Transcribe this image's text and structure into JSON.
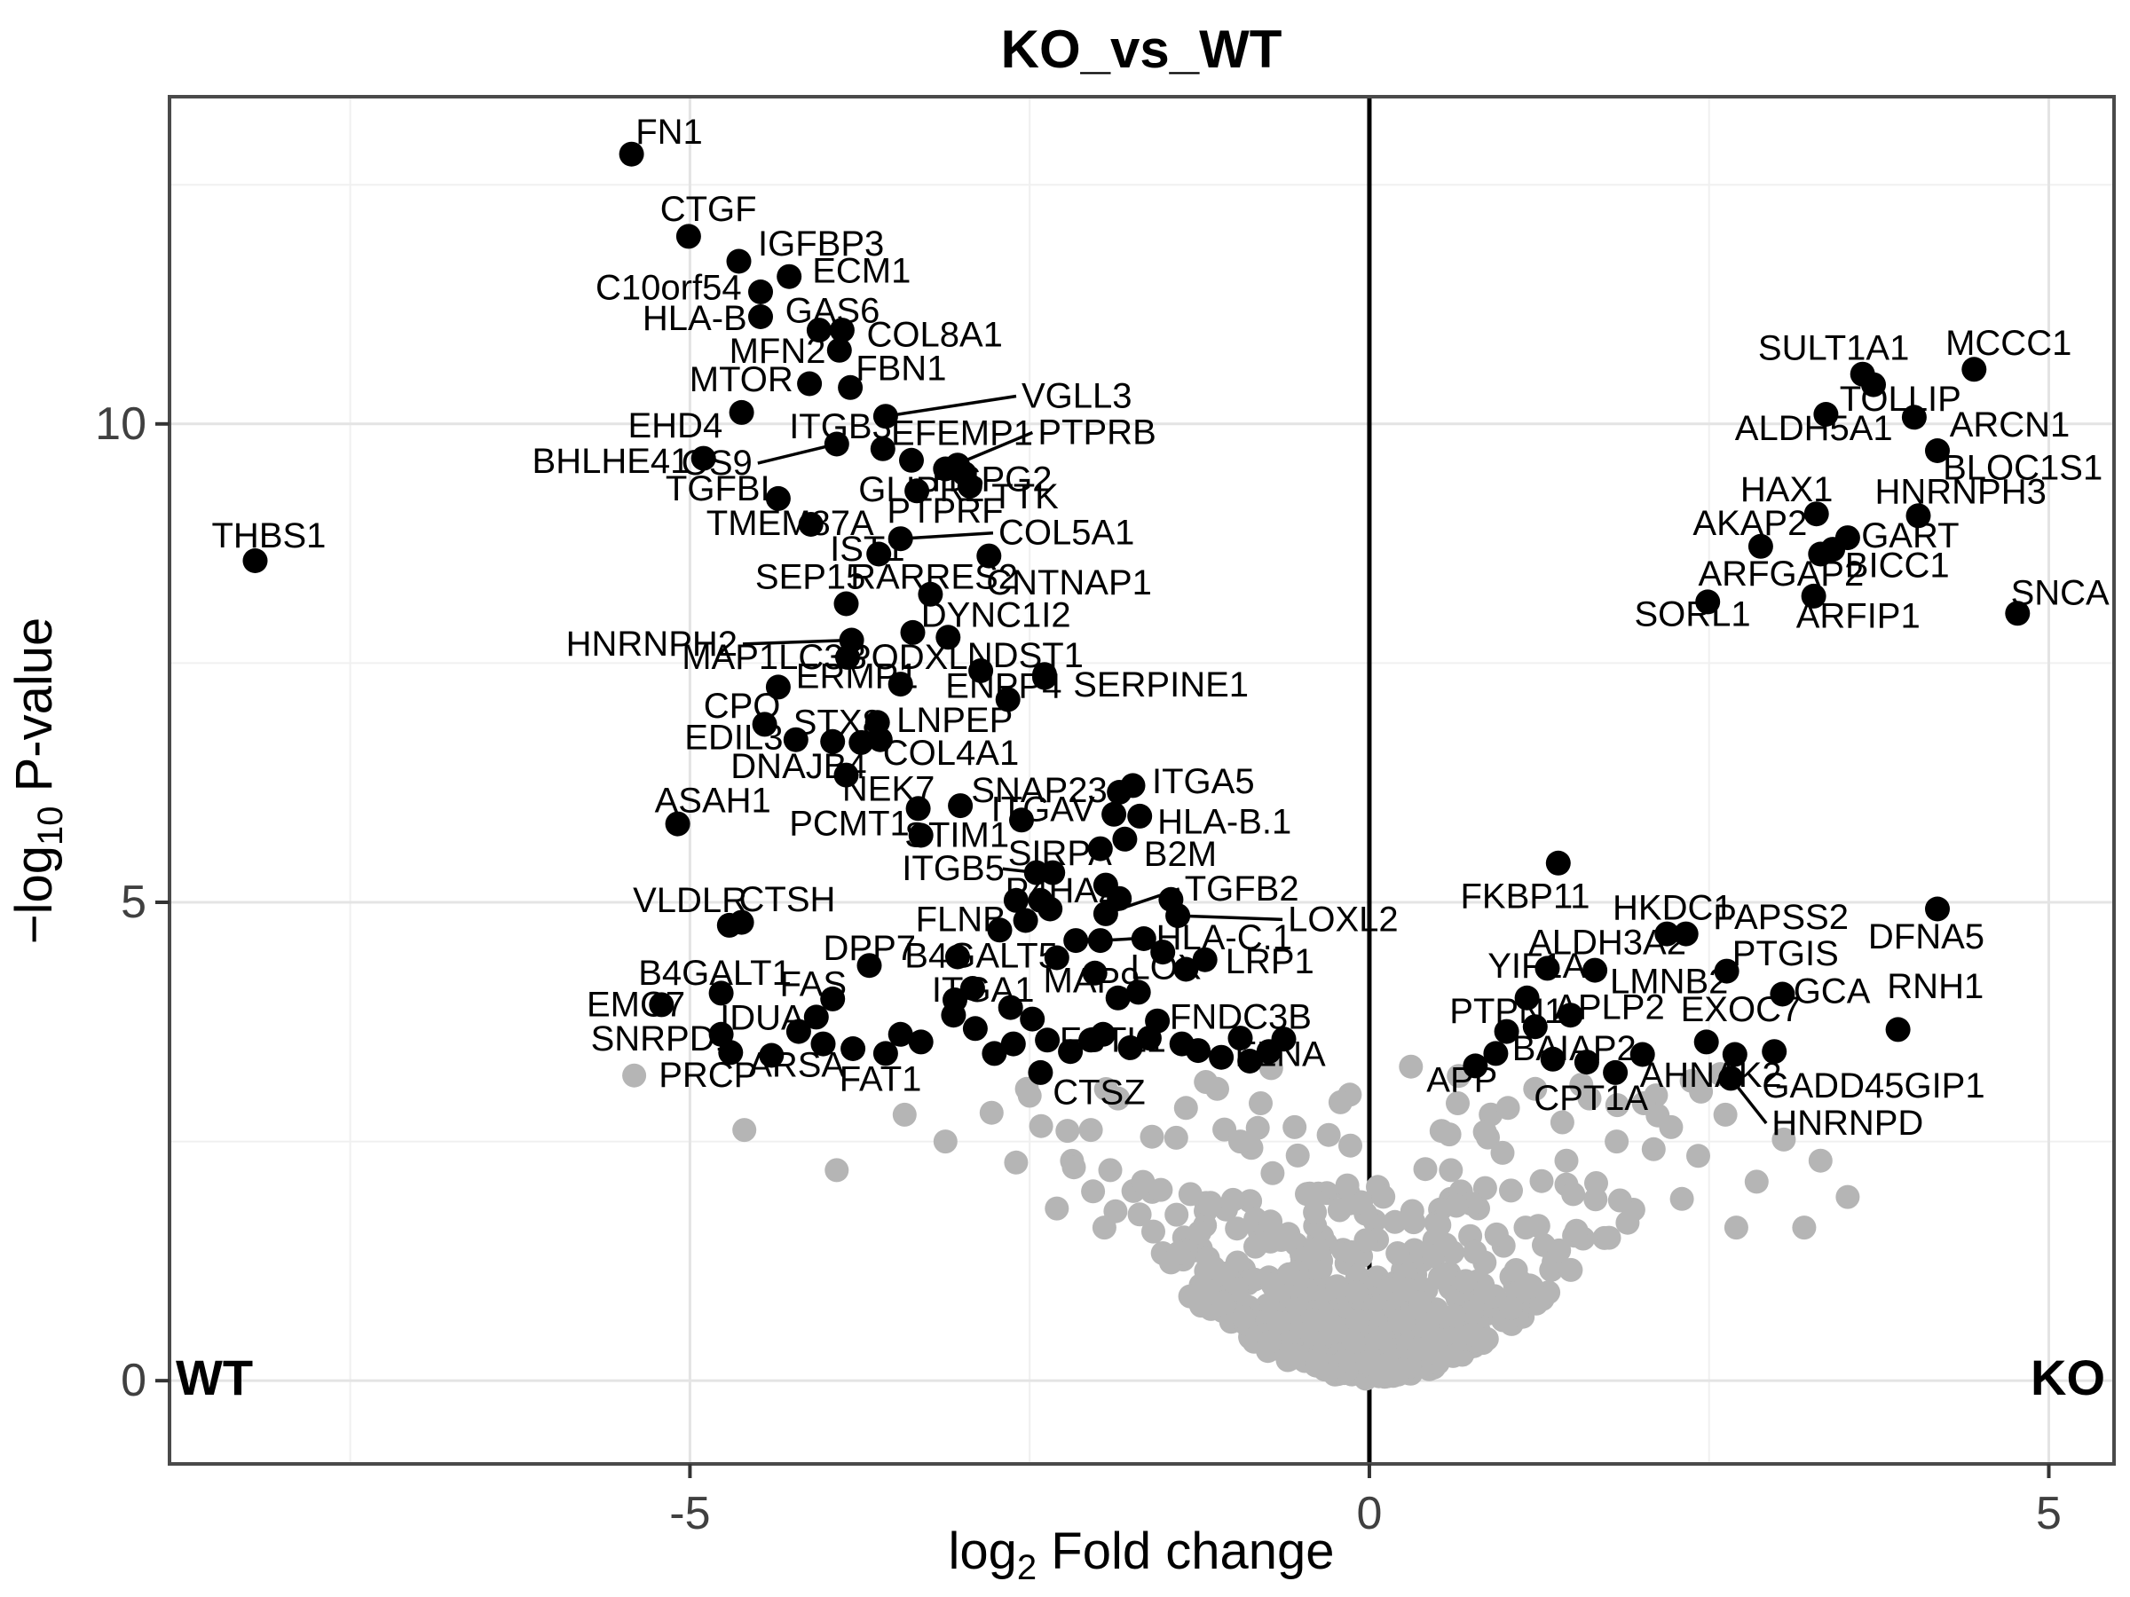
{
  "chart_data": {
    "type": "scatter",
    "subtype": "volcano-plot",
    "title": "KO_vs_WT",
    "xlabel_parts": {
      "pre": "log",
      "sub": "2",
      "post": " Fold change"
    },
    "ylabel_parts": {
      "pre": "−log",
      "sub": "10",
      "post": " P-value"
    },
    "annotations": {
      "left": "WT",
      "right": "KO"
    },
    "x_ticks": [
      {
        "v": -5,
        "label": "-5"
      },
      {
        "v": 0,
        "label": "0"
      },
      {
        "v": 5,
        "label": "5"
      }
    ],
    "y_ticks": [
      {
        "v": 0,
        "label": "0"
      },
      {
        "v": 5,
        "label": "5"
      },
      {
        "v": 10,
        "label": "10"
      }
    ],
    "x_minor": [
      -7.5,
      -2.5,
      2.5
    ],
    "y_minor": [
      2.5,
      7.5,
      12.5
    ],
    "xlim": [
      -8.83,
      5.48
    ],
    "ylim": [
      -0.87,
      13.42
    ],
    "divider_x": 0,
    "grid": "major and minor, light gray, white panel, dark panel border",
    "colors": {
      "significant_point": "#000000",
      "background_point": "#b5b5b5",
      "grid_major": "#e4e4e4",
      "grid_minor": "#f0f0f0",
      "panel_border": "#4a4a4a",
      "divider": "#000000"
    },
    "labeled_points_format": [
      "name",
      "x",
      "y",
      "label_x",
      "label_y",
      "anchor",
      "leader_line"
    ],
    "labeled_points": [
      [
        "FN1",
        -5.43,
        12.82,
        -5.4,
        13.05,
        "s",
        0
      ],
      [
        "CTGF",
        -5.01,
        11.96,
        -5.22,
        12.24,
        "s",
        0
      ],
      [
        "IGFBP3",
        -4.64,
        11.7,
        -4.5,
        11.88,
        "s",
        0
      ],
      [
        "ECM1",
        -4.27,
        11.54,
        -4.1,
        11.6,
        "s",
        0
      ],
      [
        "C10orf54",
        -4.48,
        11.38,
        -4.62,
        11.42,
        "e",
        0
      ],
      [
        "HLA-B",
        -4.48,
        11.12,
        -4.58,
        11.1,
        "e",
        0
      ],
      [
        "GAS6",
        -4.05,
        10.98,
        -4.3,
        11.18,
        "s",
        0
      ],
      [
        "COL8A1",
        -3.88,
        10.98,
        -3.7,
        10.93,
        "s",
        0
      ],
      [
        "MFN2",
        -3.9,
        10.77,
        -4.0,
        10.76,
        "e",
        0
      ],
      [
        "MTOR",
        -4.12,
        10.42,
        -4.24,
        10.46,
        "e",
        0
      ],
      [
        "FBN1",
        -3.82,
        10.38,
        -3.78,
        10.58,
        "s",
        0
      ],
      [
        "EHD4",
        -4.62,
        10.12,
        -4.76,
        9.98,
        "e",
        0
      ],
      [
        "VGLL3",
        -3.56,
        10.08,
        -2.56,
        10.29,
        "s",
        1
      ],
      [
        "ITGB3",
        -3.58,
        9.74,
        -4.27,
        9.97,
        "s",
        0
      ],
      [
        "OS9",
        -3.92,
        9.79,
        -4.54,
        9.59,
        "e",
        1
      ],
      [
        "BHLHE41",
        -4.9,
        9.64,
        -5.0,
        9.61,
        "e",
        0
      ],
      [
        "EFEMP1",
        -3.37,
        9.62,
        -3.52,
        9.9,
        "s",
        0
      ],
      [
        "PTPRB",
        -3.12,
        9.53,
        -2.44,
        9.91,
        "s",
        1
      ],
      [
        "HSPG2",
        -3.03,
        9.57,
        -3.22,
        9.42,
        "s",
        0
      ],
      [
        "TGFBI",
        -4.35,
        9.22,
        -5.18,
        9.32,
        "s",
        0
      ],
      [
        "GLIPR2",
        -2.98,
        9.48,
        -3.76,
        9.31,
        "s",
        0
      ],
      [
        "PTPRF",
        -3.33,
        9.3,
        -3.55,
        9.09,
        "s",
        0
      ],
      [
        "TTK",
        -2.94,
        9.35,
        -2.78,
        9.24,
        "s",
        0
      ],
      [
        "TMEM87A",
        -4.11,
        8.95,
        -4.88,
        8.96,
        "s",
        0
      ],
      [
        "IST1",
        -3.61,
        8.64,
        -3.97,
        8.69,
        "s",
        0
      ],
      [
        "COL5A1",
        -3.45,
        8.8,
        -2.73,
        8.86,
        "s",
        1
      ],
      [
        "SEP15",
        -3.85,
        8.12,
        -4.52,
        8.4,
        "s",
        0
      ],
      [
        "RARRES2",
        -3.23,
        8.22,
        -3.82,
        8.4,
        "s",
        0
      ],
      [
        "CNTNAP1",
        -2.8,
        8.62,
        -2.82,
        8.34,
        "s",
        0
      ],
      [
        "HNRNPH2",
        -3.81,
        7.74,
        -4.65,
        7.7,
        "e",
        1
      ],
      [
        "ERMP1",
        -3.84,
        7.56,
        -4.22,
        7.36,
        "s",
        0
      ],
      [
        "DYNC1I2",
        -3.36,
        7.82,
        -3.3,
        8.0,
        "s",
        0
      ],
      [
        "NDST1",
        -2.86,
        7.42,
        -2.96,
        7.58,
        "s",
        0
      ],
      [
        "ENPP4",
        -2.66,
        7.12,
        -3.12,
        7.26,
        "s",
        0
      ],
      [
        "SERPINE1",
        -2.39,
        7.38,
        -2.18,
        7.27,
        "s",
        0
      ],
      [
        "MAP1LC3B",
        -4.35,
        7.25,
        -5.06,
        7.56,
        "s",
        0
      ],
      [
        "PODXL",
        -3.45,
        7.28,
        -3.84,
        7.56,
        "s",
        0
      ],
      [
        "CPQ",
        -4.45,
        6.86,
        -4.9,
        7.05,
        "s",
        0
      ],
      [
        "EDIL3",
        -4.22,
        6.7,
        -5.04,
        6.72,
        "s",
        0
      ],
      [
        "STX8",
        -3.95,
        6.68,
        -4.24,
        6.88,
        "s",
        0
      ],
      [
        "LNPEP",
        -3.62,
        6.88,
        -3.48,
        6.9,
        "s",
        0
      ],
      [
        "COL4A1",
        -3.74,
        6.67,
        -3.58,
        6.56,
        "s",
        0
      ],
      [
        "DNAJB4",
        -3.85,
        6.33,
        -4.7,
        6.42,
        "s",
        0
      ],
      [
        "ASAH1",
        -5.09,
        5.82,
        -5.26,
        6.06,
        "s",
        0
      ],
      [
        "NEK7",
        -3.32,
        5.98,
        -3.88,
        6.18,
        "s",
        0
      ],
      [
        "SNAP23",
        -3.01,
        6.01,
        -2.93,
        6.17,
        "s",
        0
      ],
      [
        "PCMT1",
        -3.3,
        5.7,
        -4.27,
        5.82,
        "s",
        0
      ],
      [
        "STIM1",
        -2.56,
        5.86,
        -3.42,
        5.7,
        "s",
        0
      ],
      [
        "SIRPA",
        -1.98,
        5.56,
        -2.66,
        5.51,
        "s",
        0
      ],
      [
        "B2M",
        -1.8,
        5.66,
        -1.66,
        5.5,
        "s",
        0
      ],
      [
        "ITGAV",
        -1.88,
        5.92,
        -2.02,
        5.97,
        "e",
        0
      ],
      [
        "HLA-B.1",
        -1.69,
        5.9,
        -1.56,
        5.84,
        "s",
        0
      ],
      [
        "ITGA5",
        -1.74,
        6.22,
        -1.6,
        6.26,
        "s",
        0
      ],
      [
        "ITGB5",
        -2.45,
        5.31,
        -3.44,
        5.35,
        "s",
        1
      ],
      [
        "P4HA2",
        -2.6,
        5.02,
        -2.68,
        5.12,
        "s",
        0
      ],
      [
        "TGFB2",
        -1.94,
        4.88,
        -1.36,
        5.14,
        "s",
        1
      ],
      [
        "LOXL2",
        -1.41,
        4.86,
        -0.6,
        4.82,
        "s",
        1
      ],
      [
        "HLA-C.1",
        -1.98,
        4.6,
        -1.57,
        4.63,
        "s",
        1
      ],
      [
        "FLNB",
        -2.72,
        4.71,
        -3.34,
        4.82,
        "s",
        0
      ],
      [
        "DPP7",
        -3.68,
        4.34,
        -4.02,
        4.52,
        "s",
        0
      ],
      [
        "B4GALT5",
        -3.03,
        4.43,
        -3.42,
        4.44,
        "s",
        0
      ],
      [
        "LOX",
        -1.35,
        4.3,
        -1.76,
        4.32,
        "s",
        0
      ],
      [
        "LRP1",
        -1.21,
        4.4,
        -1.06,
        4.38,
        "s",
        0
      ],
      [
        "MAP9",
        -1.85,
        4.0,
        -2.4,
        4.18,
        "s",
        0
      ],
      [
        "FAS",
        -3.95,
        3.99,
        -4.34,
        4.14,
        "s",
        0
      ],
      [
        "ITGA1",
        -3.05,
        3.98,
        -3.22,
        4.08,
        "s",
        0
      ],
      [
        "IDUA",
        -4.07,
        3.8,
        -4.78,
        3.79,
        "s",
        0
      ],
      [
        "B4GALT1",
        -4.77,
        4.05,
        -5.38,
        4.26,
        "s",
        0
      ],
      [
        "EMC7",
        -5.21,
        3.93,
        -5.76,
        3.93,
        "s",
        0
      ],
      [
        "SNRPD1",
        -4.77,
        3.62,
        -5.73,
        3.57,
        "s",
        0
      ],
      [
        "VLDLR",
        -4.71,
        4.76,
        -5.42,
        5.02,
        "s",
        0
      ],
      [
        "CTSH",
        -4.62,
        4.79,
        -4.64,
        5.03,
        "s",
        0
      ],
      [
        "PRCP",
        -4.7,
        3.43,
        -5.23,
        3.19,
        "s",
        0
      ],
      [
        "ARSA",
        -4.02,
        3.52,
        -4.57,
        3.3,
        "s",
        0
      ],
      [
        "FAT1",
        -3.8,
        3.47,
        -3.9,
        3.15,
        "s",
        0
      ],
      [
        "FSTL1",
        -2.37,
        3.56,
        -2.28,
        3.56,
        "s",
        0
      ],
      [
        "FNDC3B",
        -1.56,
        3.76,
        -1.47,
        3.8,
        "s",
        0
      ],
      [
        "FLNA",
        -1.09,
        3.38,
        -0.99,
        3.41,
        "s",
        0
      ],
      [
        "CTSZ",
        -2.42,
        3.22,
        -2.33,
        3.01,
        "s",
        0
      ],
      [
        "THBS1",
        -8.2,
        8.57,
        -8.52,
        8.83,
        "s",
        0
      ],
      [
        "SULT1A1",
        3.63,
        10.52,
        2.86,
        10.79,
        "s",
        0
      ],
      [
        "TOLLIP",
        3.71,
        10.41,
        3.46,
        10.26,
        "s",
        0
      ],
      [
        "MCCC1",
        4.45,
        10.57,
        4.24,
        10.84,
        "s",
        0
      ],
      [
        "ALDH5A1",
        3.36,
        10.1,
        2.69,
        9.95,
        "s",
        0
      ],
      [
        "ARCN1",
        4.01,
        10.07,
        4.27,
        9.99,
        "s",
        0
      ],
      [
        "BLOC1S1",
        4.18,
        9.72,
        4.22,
        9.54,
        "s",
        0
      ],
      [
        "HAX1",
        3.29,
        9.06,
        2.73,
        9.31,
        "s",
        0
      ],
      [
        "HNRNPH3",
        4.04,
        9.04,
        3.72,
        9.29,
        "s",
        0
      ],
      [
        "AKAP2",
        2.88,
        8.72,
        2.38,
        8.96,
        "s",
        0
      ],
      [
        "GART",
        3.52,
        8.81,
        3.62,
        8.83,
        "s",
        0
      ],
      [
        "BICC1",
        3.41,
        8.69,
        3.5,
        8.52,
        "s",
        0
      ],
      [
        "ARFGAP2",
        3.32,
        8.64,
        2.42,
        8.43,
        "s",
        0
      ],
      [
        "SORL1",
        2.49,
        8.14,
        1.95,
        8.01,
        "s",
        0
      ],
      [
        "ARFIP1",
        3.27,
        8.2,
        3.14,
        7.99,
        "s",
        0
      ],
      [
        "SNCA",
        4.77,
        8.02,
        4.72,
        8.23,
        "s",
        0
      ],
      [
        "FKBP11",
        1.39,
        5.41,
        0.67,
        5.06,
        "s",
        0
      ],
      [
        "HKDC1",
        2.19,
        4.67,
        1.79,
        4.94,
        "s",
        0
      ],
      [
        "PAPSS2",
        2.33,
        4.67,
        2.53,
        4.84,
        "s",
        0
      ],
      [
        "DFNA5",
        4.18,
        4.93,
        3.67,
        4.64,
        "s",
        0
      ],
      [
        "ALDH3A2",
        1.31,
        4.31,
        1.17,
        4.58,
        "s",
        0
      ],
      [
        "PTGIS",
        2.63,
        4.28,
        2.67,
        4.46,
        "s",
        0
      ],
      [
        "LMNB2",
        1.66,
        4.29,
        1.77,
        4.17,
        "s",
        0
      ],
      [
        "YIF1A",
        1.16,
        4.0,
        0.87,
        4.33,
        "s",
        0
      ],
      [
        "GCA",
        3.04,
        4.04,
        3.12,
        4.07,
        "s",
        0
      ],
      [
        "RNH1",
        3.89,
        3.67,
        3.81,
        4.12,
        "s",
        0
      ],
      [
        "PTPN1",
        1.01,
        3.65,
        0.59,
        3.86,
        "s",
        0
      ],
      [
        "APLP2",
        1.22,
        3.7,
        1.36,
        3.9,
        "s",
        0
      ],
      [
        "EXOC7",
        2.48,
        3.54,
        2.29,
        3.88,
        "s",
        0
      ],
      [
        "BAIAP2",
        1.6,
        3.33,
        1.05,
        3.47,
        "s",
        0
      ],
      [
        "APP",
        0.78,
        3.29,
        0.42,
        3.14,
        "s",
        0
      ],
      [
        "CPT1A",
        1.81,
        3.22,
        1.21,
        2.95,
        "s",
        0
      ],
      [
        "AHNAK2",
        2.69,
        3.41,
        1.99,
        3.19,
        "s",
        0
      ],
      [
        "GADD45GIP1",
        2.98,
        3.44,
        2.89,
        3.08,
        "s",
        0
      ],
      [
        "HNRNPD",
        2.66,
        3.16,
        2.96,
        2.69,
        "s",
        1
      ]
    ],
    "unlabeled_significant_points": [
      [
        -2.35,
        4.93
      ],
      [
        -2.53,
        4.81
      ],
      [
        -1.46,
        5.03
      ],
      [
        -1.94,
        5.18
      ],
      [
        -1.84,
        5.04
      ],
      [
        -2.33,
        5.31
      ],
      [
        -2.42,
        5.02
      ],
      [
        -1.84,
        6.15
      ],
      [
        -3.1,
        7.77
      ],
      [
        -2.39,
        7.35
      ],
      [
        -3.6,
        6.7
      ],
      [
        -2.62,
        3.52
      ],
      [
        -2.2,
        3.44
      ],
      [
        -2.05,
        3.56
      ],
      [
        -1.76,
        3.48
      ],
      [
        -1.62,
        3.58
      ],
      [
        -1.38,
        3.52
      ],
      [
        -0.95,
        3.58
      ],
      [
        -0.74,
        3.44
      ],
      [
        -0.63,
        3.57
      ],
      [
        -3.45,
        3.62
      ],
      [
        -3.3,
        3.54
      ],
      [
        -2.9,
        3.68
      ],
      [
        -2.76,
        3.42
      ],
      [
        -3.56,
        3.42
      ],
      [
        -1.26,
        3.45
      ],
      [
        -1.96,
        3.62
      ],
      [
        -2.48,
        3.78
      ],
      [
        -2.64,
        3.9
      ],
      [
        -1.7,
        4.06
      ],
      [
        -2.92,
        4.1
      ],
      [
        -3.06,
        3.82
      ],
      [
        -0.88,
        3.34
      ],
      [
        -2.16,
        4.6
      ],
      [
        -2.3,
        4.42
      ],
      [
        -1.66,
        4.62
      ],
      [
        -2.02,
        4.26
      ],
      [
        -1.52,
        4.48
      ],
      [
        1.48,
        3.82
      ],
      [
        2.01,
        3.41
      ],
      [
        1.35,
        3.36
      ],
      [
        0.93,
        3.42
      ],
      [
        -4.4,
        3.4
      ],
      [
        -4.2,
        3.65
      ]
    ],
    "background_cloud": {
      "description": "dense unlabeled non-significant points forming volcano V around x=0",
      "seed": 987654321,
      "count": 520,
      "extra_points": [
        [
          -5.41,
          3.19
        ],
        [
          -4.6,
          2.62
        ],
        [
          -3.92,
          2.2
        ],
        [
          -3.42,
          2.78
        ],
        [
          -3.12,
          2.5
        ],
        [
          -2.78,
          2.8
        ],
        [
          -2.6,
          2.28
        ],
        [
          -2.3,
          1.8
        ],
        [
          -2.52,
          3.05
        ],
        [
          -2.05,
          2.62
        ],
        [
          -1.85,
          2.95
        ],
        [
          -1.6,
          2.55
        ],
        [
          -1.95,
          1.6
        ],
        [
          -1.35,
          2.85
        ],
        [
          -1.12,
          3.05
        ],
        [
          3.32,
          2.3
        ],
        [
          3.52,
          1.92
        ],
        [
          3.05,
          2.52
        ],
        [
          2.85,
          2.08
        ],
        [
          2.62,
          2.78
        ],
        [
          2.42,
          2.35
        ],
        [
          2.22,
          2.65
        ],
        [
          2.02,
          2.9
        ],
        [
          1.82,
          2.5
        ],
        [
          1.62,
          2.95
        ],
        [
          1.42,
          2.7
        ],
        [
          1.22,
          3.05
        ],
        [
          1.02,
          2.85
        ],
        [
          2.3,
          1.9
        ],
        [
          1.9,
          1.65
        ],
        [
          1.5,
          1.95
        ],
        [
          1.15,
          1.6
        ],
        [
          2.7,
          1.6
        ],
        [
          0.85,
          2.6
        ],
        [
          0.65,
          2.9
        ],
        [
          0.6,
          2.2
        ],
        [
          3.2,
          1.6
        ],
        [
          -0.95,
          2.5
        ],
        [
          -0.8,
          2.9
        ],
        [
          -1.25,
          1.55
        ],
        [
          -0.55,
          2.65
        ],
        [
          1.45,
          2.3
        ]
      ]
    }
  }
}
